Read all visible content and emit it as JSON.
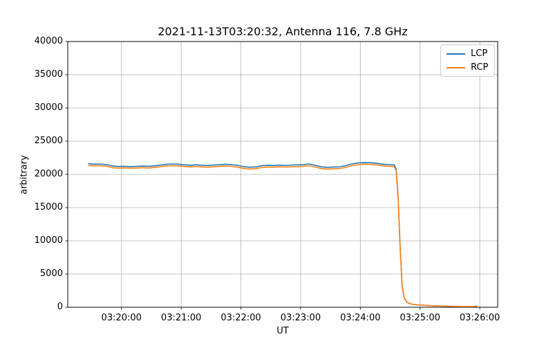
{
  "chart_data": {
    "type": "line",
    "title": "2021-11-13T03:20:32, Antenna 116, 7.8 GHz",
    "xlabel": "UT",
    "ylabel": "arbitrary",
    "grid": true,
    "grid_color": "#b0b0b0",
    "legend_position": "upper right",
    "x_unit": "seconds after 03:19:00 UT",
    "xlim": [
      6,
      438
    ],
    "ylim": [
      0,
      40000
    ],
    "x_ticks": {
      "values": [
        60,
        120,
        180,
        240,
        300,
        360,
        420
      ],
      "labels": [
        "03:20:00",
        "03:21:00",
        "03:22:00",
        "03:23:00",
        "03:24:00",
        "03:25:00",
        "03:26:00"
      ]
    },
    "y_ticks": {
      "values": [
        0,
        5000,
        10000,
        15000,
        20000,
        25000,
        30000,
        35000,
        40000
      ],
      "labels": [
        "0",
        "5000",
        "10000",
        "15000",
        "20000",
        "25000",
        "30000",
        "35000",
        "40000"
      ]
    },
    "t": [
      27,
      33,
      39,
      45,
      51,
      57,
      63,
      69,
      75,
      81,
      87,
      93,
      99,
      105,
      111,
      117,
      123,
      129,
      135,
      141,
      147,
      153,
      159,
      165,
      171,
      177,
      183,
      189,
      195,
      201,
      207,
      213,
      219,
      225,
      231,
      237,
      243,
      249,
      255,
      261,
      267,
      273,
      279,
      285,
      291,
      297,
      303,
      309,
      315,
      321,
      327,
      331,
      334,
      336,
      338,
      340,
      342,
      344,
      347,
      350,
      354,
      357,
      363,
      369,
      375,
      381,
      387,
      393,
      399,
      405,
      411,
      417
    ],
    "series": [
      {
        "name": "LCP",
        "color": "#1f77b4",
        "values": [
          21600,
          21540,
          21560,
          21470,
          21260,
          21190,
          21220,
          21170,
          21210,
          21260,
          21210,
          21280,
          21400,
          21520,
          21560,
          21530,
          21440,
          21370,
          21450,
          21360,
          21330,
          21420,
          21470,
          21520,
          21460,
          21340,
          21160,
          21070,
          21120,
          21300,
          21370,
          21340,
          21400,
          21350,
          21410,
          21430,
          21480,
          21560,
          21350,
          21120,
          21060,
          21100,
          21150,
          21300,
          21550,
          21720,
          21780,
          21760,
          21700,
          21570,
          21480,
          21460,
          21420,
          20800,
          16500,
          9000,
          3200,
          1400,
          750,
          520,
          420,
          380,
          310,
          250,
          210,
          180,
          160,
          140,
          125,
          115,
          110,
          150
        ]
      },
      {
        "name": "RCP",
        "color": "#ff7f0e",
        "values": [
          21330,
          21290,
          21300,
          21230,
          21010,
          20950,
          20980,
          20930,
          20960,
          21010,
          20960,
          21030,
          21150,
          21270,
          21300,
          21270,
          21190,
          21120,
          21200,
          21110,
          21070,
          21160,
          21210,
          21260,
          21200,
          21070,
          20890,
          20800,
          20860,
          21040,
          21110,
          21080,
          21140,
          21090,
          21150,
          21170,
          21220,
          21300,
          21090,
          20860,
          20800,
          20840,
          20890,
          21040,
          21290,
          21460,
          21530,
          21510,
          21450,
          21320,
          21230,
          21210,
          21170,
          20600,
          16350,
          8900,
          3150,
          1380,
          740,
          515,
          418,
          378,
          310,
          250,
          210,
          180,
          160,
          140,
          125,
          115,
          110,
          150
        ]
      }
    ]
  }
}
